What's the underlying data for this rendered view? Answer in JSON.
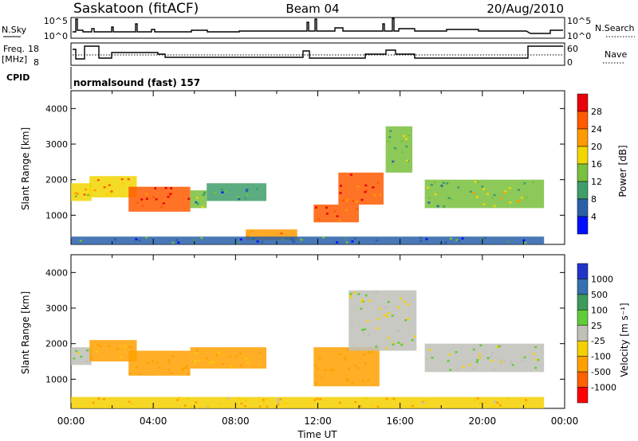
{
  "header": {
    "site": "Saskatoon (fitACF)",
    "beam": "Beam 04",
    "date": "20/Aug/2010"
  },
  "top_panels": {
    "nsky_label": "N.Sky",
    "nsky_ticks": [
      "10^5",
      "10^0"
    ],
    "nsearch_label": "N.Search",
    "nsearch_ticks": [
      "10^5",
      "10^0"
    ],
    "freq_label_1": "Freq.",
    "freq_label_2": "[MHz]",
    "freq_ticks": [
      "18",
      "8"
    ],
    "nave_label": "Nave",
    "nave_ticks": [
      "60",
      "0"
    ],
    "cpid_label": "CPID",
    "cpid_text": "normalsound (fast) 157"
  },
  "axes": {
    "ylabel": "Slant Range [km]",
    "yticks": [
      "4000",
      "3000",
      "2000",
      "1000"
    ],
    "xlabel": "Time UT",
    "xticks": [
      "00:00",
      "04:00",
      "08:00",
      "12:00",
      "16:00",
      "20:00",
      "00:00"
    ]
  },
  "power_scale": {
    "label": "Power [dB]",
    "ticks": [
      "28",
      "24",
      "20",
      "16",
      "12",
      "8",
      "4"
    ],
    "colors": [
      "#e8000b",
      "#ff5a00",
      "#ff9a00",
      "#f2d600",
      "#79c03c",
      "#3f9d6b",
      "#2a5fa8",
      "#0010ff"
    ]
  },
  "velocity_scale": {
    "label": "Velocity [m s⁻¹]",
    "ticks": [
      "1000",
      "500",
      "100",
      "25",
      "-25",
      "-100",
      "-500",
      "-1000"
    ],
    "colors": [
      "#2035c8",
      "#3570b0",
      "#3c9a5a",
      "#5fcc3a",
      "#c0c0b8",
      "#f5d000",
      "#ffa000",
      "#ff6000",
      "#ff0000"
    ]
  },
  "chart_data": [
    {
      "type": "heatmap",
      "title": "Power [dB]",
      "xlabel": "Time UT",
      "ylabel": "Slant Range [km]",
      "xlim": [
        0,
        24
      ],
      "ylim": [
        180,
        4500
      ],
      "regions": [
        {
          "t0": 0.0,
          "t1": 1.0,
          "r0": 1400,
          "r1": 1900,
          "value": 16
        },
        {
          "t0": 0.9,
          "t1": 3.2,
          "r0": 1500,
          "r1": 2100,
          "value": 18
        },
        {
          "t0": 2.8,
          "t1": 5.8,
          "r0": 1100,
          "r1": 1800,
          "value": 26
        },
        {
          "t0": 5.8,
          "t1": 6.6,
          "r0": 1200,
          "r1": 1700,
          "value": 12
        },
        {
          "t0": 6.6,
          "t1": 9.5,
          "r0": 1400,
          "r1": 1900,
          "value": 8
        },
        {
          "t0": 8.5,
          "t1": 11.0,
          "r0": 300,
          "r1": 600,
          "value": 22
        },
        {
          "t0": 11.8,
          "t1": 14.0,
          "r0": 800,
          "r1": 1300,
          "value": 25
        },
        {
          "t0": 13.0,
          "t1": 15.2,
          "r0": 1300,
          "r1": 2200,
          "value": 23
        },
        {
          "t0": 15.3,
          "t1": 16.6,
          "r0": 2200,
          "r1": 3500,
          "value": 12
        },
        {
          "t0": 17.2,
          "t1": 23.0,
          "r0": 1200,
          "r1": 2000,
          "value": 12
        },
        {
          "t0": 0.0,
          "t1": 23.0,
          "r0": 180,
          "r1": 400,
          "value": 6
        }
      ]
    },
    {
      "type": "heatmap",
      "title": "Velocity [m s⁻¹]",
      "xlabel": "Time UT",
      "ylabel": "Slant Range [km]",
      "xlim": [
        0,
        24
      ],
      "ylim": [
        180,
        4500
      ],
      "regions": [
        {
          "t0": 0.0,
          "t1": 1.0,
          "r0": 1400,
          "r1": 1900,
          "value": 0
        },
        {
          "t0": 0.9,
          "t1": 3.2,
          "r0": 1500,
          "r1": 2100,
          "value": -150
        },
        {
          "t0": 2.8,
          "t1": 5.8,
          "r0": 1100,
          "r1": 1800,
          "value": -200
        },
        {
          "t0": 5.8,
          "t1": 9.5,
          "r0": 1300,
          "r1": 1900,
          "value": -120
        },
        {
          "t0": 11.8,
          "t1": 15.0,
          "r0": 800,
          "r1": 1900,
          "value": -400
        },
        {
          "t0": 13.5,
          "t1": 16.8,
          "r0": 1800,
          "r1": 3500,
          "value": 0
        },
        {
          "t0": 17.2,
          "t1": 23.0,
          "r0": 1200,
          "r1": 2000,
          "value": 0
        },
        {
          "t0": 0.0,
          "t1": 23.0,
          "r0": 180,
          "r1": 500,
          "value": -100
        }
      ]
    }
  ]
}
